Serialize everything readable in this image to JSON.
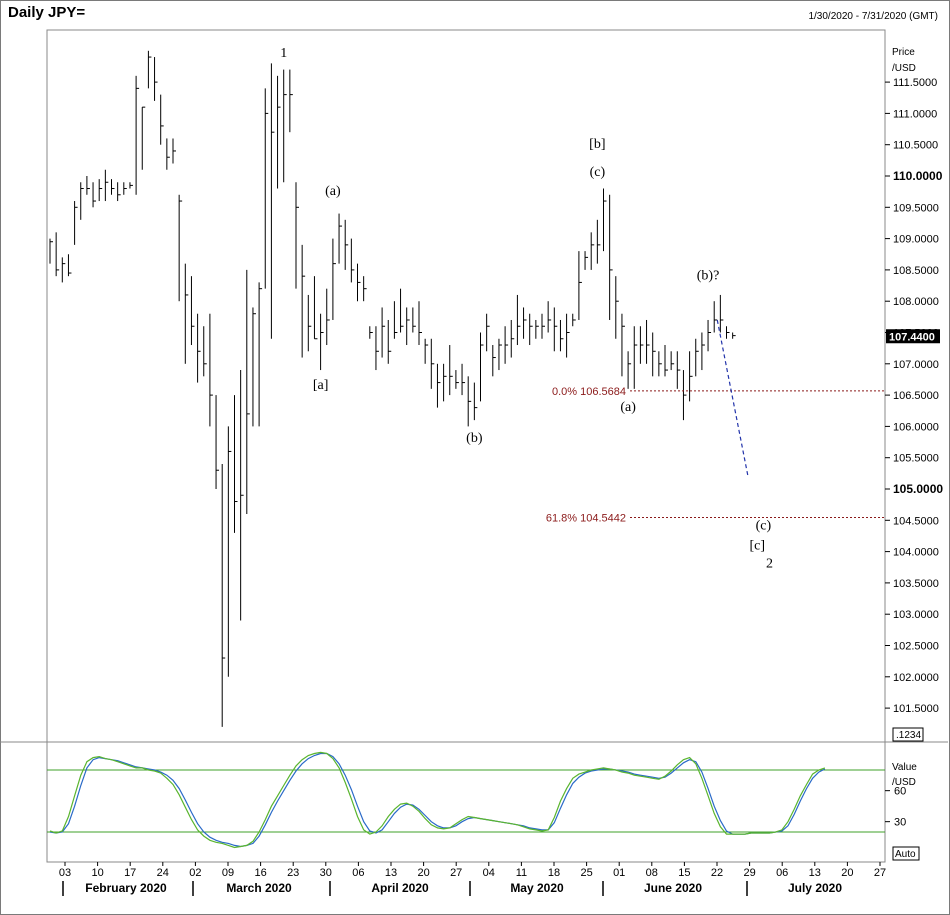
{
  "window": {
    "title": "Daily JPY=",
    "date_range": "1/30/2020 - 7/31/2020 (GMT)"
  },
  "chart_data": {
    "type": "ohlc",
    "price_axis": {
      "label_line1": "Price",
      "label_line2": "/USD",
      "ylim": [
        101.0,
        112.1
      ],
      "ticks": [
        "101.5000",
        "102.0000",
        "102.5000",
        "103.0000",
        "103.5000",
        "104.0000",
        "104.5000",
        "105.0000",
        "105.5000",
        "106.0000",
        "106.5000",
        "107.0000",
        "107.5000",
        "108.0000",
        "108.5000",
        "109.0000",
        "109.5000",
        "110.0000",
        "110.5000",
        "111.0000",
        "111.5000"
      ],
      "bold_ticks": [
        "105.0000",
        "110.0000"
      ],
      "last_price": "107.4400",
      "scale_box": ".1234"
    },
    "indicator_axis": {
      "label_line1": "Value",
      "label_line2": "/USD",
      "ticks": [
        "60",
        "30"
      ],
      "auto_button": "Auto",
      "band_upper": 80,
      "band_lower": 20
    },
    "time_axis": {
      "day_labels": [
        "03",
        "10",
        "17",
        "24",
        "02",
        "09",
        "16",
        "23",
        "30",
        "06",
        "13",
        "20",
        "27",
        "04",
        "11",
        "18",
        "25",
        "01",
        "08",
        "15",
        "22",
        "29",
        "06",
        "13",
        "20",
        "27"
      ],
      "months": [
        "February 2020",
        "March 2020",
        "April 2020",
        "May 2020",
        "June 2020",
        "July 2020"
      ]
    },
    "bars": [
      [
        109.0,
        108.6,
        108.95
      ],
      [
        109.1,
        108.4,
        108.5
      ],
      [
        108.7,
        108.3,
        108.6
      ],
      [
        108.75,
        108.4,
        108.45
      ],
      [
        109.6,
        108.9,
        109.5
      ],
      [
        109.9,
        109.3,
        109.8
      ],
      [
        110.0,
        109.7,
        109.8
      ],
      [
        109.9,
        109.5,
        109.6
      ],
      [
        109.95,
        109.6,
        109.8
      ],
      [
        110.1,
        109.6,
        109.9
      ],
      [
        109.95,
        109.7,
        109.8
      ],
      [
        109.9,
        109.6,
        109.7
      ],
      [
        109.9,
        109.7,
        109.8
      ],
      [
        109.9,
        109.8,
        109.85
      ],
      [
        111.6,
        109.7,
        111.4
      ],
      [
        111.1,
        110.1,
        111.1
      ],
      [
        112.0,
        111.4,
        111.9
      ],
      [
        111.9,
        111.2,
        111.5
      ],
      [
        111.3,
        110.5,
        110.8
      ],
      [
        110.6,
        110.1,
        110.3
      ],
      [
        110.6,
        110.2,
        110.4
      ],
      [
        109.7,
        108.0,
        109.6
      ],
      [
        108.6,
        107.0,
        108.1
      ],
      [
        108.4,
        107.3,
        107.6
      ],
      [
        107.8,
        106.7,
        107.2
      ],
      [
        107.6,
        106.8,
        107.0
      ],
      [
        107.8,
        106.0,
        106.5
      ],
      [
        106.5,
        105.0,
        105.3
      ],
      [
        105.4,
        101.2,
        102.3
      ],
      [
        106.0,
        102.0,
        105.6
      ],
      [
        106.5,
        104.3,
        104.8
      ],
      [
        106.9,
        102.9,
        104.9
      ],
      [
        108.5,
        104.6,
        106.2
      ],
      [
        107.9,
        106.0,
        107.8
      ],
      [
        108.3,
        106.0,
        108.2
      ],
      [
        111.4,
        108.2,
        111.0
      ],
      [
        111.8,
        107.4,
        110.7
      ],
      [
        111.6,
        109.8,
        111.1
      ],
      [
        111.7,
        109.9,
        111.3
      ],
      [
        111.7,
        110.7,
        111.3
      ],
      [
        109.9,
        108.2,
        109.5
      ],
      [
        108.9,
        107.1,
        108.4
      ],
      [
        108.1,
        107.2,
        107.6
      ],
      [
        108.4,
        107.4,
        107.4
      ],
      [
        107.8,
        106.9,
        107.5
      ],
      [
        108.2,
        107.3,
        107.7
      ],
      [
        109.0,
        107.7,
        108.6
      ],
      [
        109.4,
        108.6,
        109.2
      ],
      [
        109.3,
        108.5,
        108.9
      ],
      [
        109.0,
        108.3,
        108.5
      ],
      [
        108.6,
        108.0,
        108.3
      ],
      [
        108.4,
        108.0,
        108.2
      ],
      [
        107.6,
        107.4,
        107.5
      ],
      [
        107.6,
        106.9,
        107.2
      ],
      [
        107.9,
        107.1,
        107.6
      ],
      [
        107.7,
        107.0,
        107.2
      ],
      [
        108.0,
        107.4,
        107.5
      ],
      [
        108.2,
        107.5,
        107.6
      ],
      [
        107.9,
        107.3,
        107.7
      ],
      [
        107.9,
        107.5,
        107.6
      ],
      [
        108.0,
        107.3,
        107.5
      ],
      [
        107.4,
        107.0,
        107.3
      ],
      [
        107.4,
        106.6,
        107.0
      ],
      [
        107.0,
        106.3,
        106.7
      ],
      [
        107.0,
        106.4,
        106.8
      ],
      [
        107.3,
        106.5,
        106.8
      ],
      [
        106.9,
        106.6,
        106.7
      ],
      [
        107.0,
        106.5,
        106.7
      ],
      [
        106.8,
        106.0,
        106.4
      ],
      [
        106.7,
        106.1,
        106.3
      ],
      [
        107.5,
        106.4,
        107.3
      ],
      [
        107.8,
        107.2,
        107.6
      ],
      [
        107.3,
        106.8,
        107.1
      ],
      [
        107.4,
        106.9,
        107.3
      ],
      [
        107.6,
        107.0,
        107.3
      ],
      [
        107.7,
        107.1,
        107.4
      ],
      [
        108.1,
        107.3,
        107.6
      ],
      [
        107.9,
        107.4,
        107.7
      ],
      [
        107.8,
        107.3,
        107.6
      ],
      [
        107.7,
        107.4,
        107.6
      ],
      [
        107.8,
        107.4,
        107.6
      ],
      [
        108.0,
        107.5,
        107.7
      ],
      [
        107.9,
        107.2,
        107.6
      ],
      [
        107.7,
        107.2,
        107.4
      ],
      [
        107.8,
        107.1,
        107.5
      ],
      [
        107.8,
        107.6,
        107.7
      ],
      [
        108.8,
        107.7,
        108.3
      ],
      [
        108.8,
        108.5,
        108.7
      ],
      [
        109.1,
        108.5,
        108.9
      ],
      [
        109.3,
        108.6,
        108.9
      ],
      [
        109.8,
        108.8,
        109.6
      ],
      [
        109.7,
        107.7,
        108.5
      ],
      [
        108.4,
        107.4,
        108.0
      ],
      [
        107.8,
        106.8,
        107.6
      ],
      [
        107.2,
        106.6,
        107.0
      ],
      [
        107.6,
        106.6,
        107.3
      ],
      [
        107.6,
        107.0,
        107.3
      ],
      [
        107.7,
        107.0,
        107.3
      ],
      [
        107.5,
        106.8,
        107.2
      ],
      [
        107.2,
        106.8,
        107.0
      ],
      [
        107.3,
        106.8,
        106.9
      ],
      [
        107.2,
        106.9,
        107.0
      ],
      [
        107.2,
        106.6,
        106.9
      ],
      [
        106.9,
        106.1,
        106.5
      ],
      [
        107.2,
        106.4,
        106.8
      ],
      [
        107.4,
        106.8,
        107.2
      ],
      [
        107.5,
        106.9,
        107.3
      ],
      [
        107.7,
        107.2,
        107.5
      ],
      [
        108.0,
        107.5,
        107.7
      ],
      [
        108.1,
        107.5,
        107.7
      ],
      [
        107.6,
        107.4,
        107.5
      ],
      [
        107.5,
        107.4,
        107.45
      ]
    ],
    "fib_lines": [
      {
        "label": "0.0%  106.5684",
        "value": 106.5684
      },
      {
        "label": "61.8%  104.5442",
        "value": 104.5442
      }
    ],
    "wave_labels": [
      {
        "text": "1",
        "bar": 38,
        "price": 111.9
      },
      {
        "text": "[a]",
        "bar": 44,
        "price": 106.6
      },
      {
        "text": "(a)",
        "bar": 46,
        "price": 109.7
      },
      {
        "text": "(b)",
        "bar": 69,
        "price": 105.75
      },
      {
        "text": "[b]",
        "bar": 89,
        "price": 110.45
      },
      {
        "text": "(c)",
        "bar": 89,
        "price": 110.0
      },
      {
        "text": "(a)",
        "bar": 94,
        "price": 106.25
      },
      {
        "text": "(b)?",
        "bar": 107,
        "price": 108.35
      },
      {
        "text": "(c)",
        "bar": 116,
        "price": 104.35
      },
      {
        "text": "[c]",
        "bar": 115,
        "price": 104.03
      },
      {
        "text": "2",
        "bar": 117,
        "price": 103.75
      }
    ],
    "projection": {
      "from": {
        "bar": 108.5,
        "price": 107.7
      },
      "to": {
        "bar": 113.5,
        "price": 105.2
      }
    },
    "stoch_k": [
      21,
      19,
      21,
      35,
      55,
      75,
      88,
      92,
      93,
      91,
      90,
      88,
      86,
      84,
      82,
      82,
      80,
      79,
      77,
      72,
      66,
      56,
      44,
      32,
      22,
      16,
      12,
      10,
      9,
      7,
      5,
      6,
      7,
      11,
      20,
      32,
      45,
      55,
      65,
      75,
      84,
      90,
      94,
      96,
      97,
      96,
      91,
      82,
      68,
      52,
      35,
      22,
      18,
      20,
      26,
      35,
      42,
      47,
      48,
      45,
      40,
      33,
      27,
      24,
      23,
      24,
      28,
      32,
      35,
      34,
      33,
      32,
      31,
      30,
      29,
      28,
      27,
      25,
      23,
      22,
      21,
      22,
      34,
      50,
      62,
      72,
      76,
      78,
      80,
      81,
      82,
      81,
      80,
      78,
      77,
      75,
      74,
      73,
      72,
      71,
      74,
      79,
      85,
      90,
      92,
      86,
      72,
      55,
      38,
      25,
      18,
      18,
      18,
      18,
      19,
      19,
      19,
      19,
      20,
      22,
      30,
      42,
      55,
      66,
      76,
      80,
      82
    ],
    "stoch_d": [
      20,
      19,
      20,
      28,
      45,
      65,
      82,
      90,
      92,
      91,
      90,
      89,
      87,
      85,
      83,
      82,
      81,
      80,
      78,
      75,
      70,
      62,
      51,
      39,
      28,
      20,
      15,
      12,
      10,
      9,
      7,
      6,
      7,
      9,
      16,
      27,
      39,
      50,
      60,
      70,
      79,
      86,
      91,
      94,
      96,
      96,
      93,
      86,
      75,
      61,
      45,
      30,
      21,
      19,
      22,
      30,
      38,
      44,
      47,
      46,
      42,
      36,
      30,
      26,
      24,
      24,
      26,
      30,
      33,
      34,
      33,
      32,
      31,
      30,
      29,
      28,
      27,
      26,
      24,
      23,
      22,
      22,
      29,
      43,
      56,
      67,
      73,
      77,
      79,
      80,
      81,
      81,
      80,
      79,
      78,
      76,
      75,
      74,
      73,
      72,
      73,
      77,
      82,
      87,
      90,
      88,
      78,
      62,
      45,
      31,
      21,
      18,
      18,
      18,
      19,
      19,
      19,
      19,
      20,
      21,
      26,
      37,
      50,
      62,
      72,
      78,
      81
    ]
  },
  "colors": {
    "fib": "#8b1a1a",
    "projection": "#2233aa",
    "band": "#3fa028",
    "stoch_k": "#5ab52e",
    "stoch_d": "#2a6ac8",
    "bar": "#000000"
  }
}
